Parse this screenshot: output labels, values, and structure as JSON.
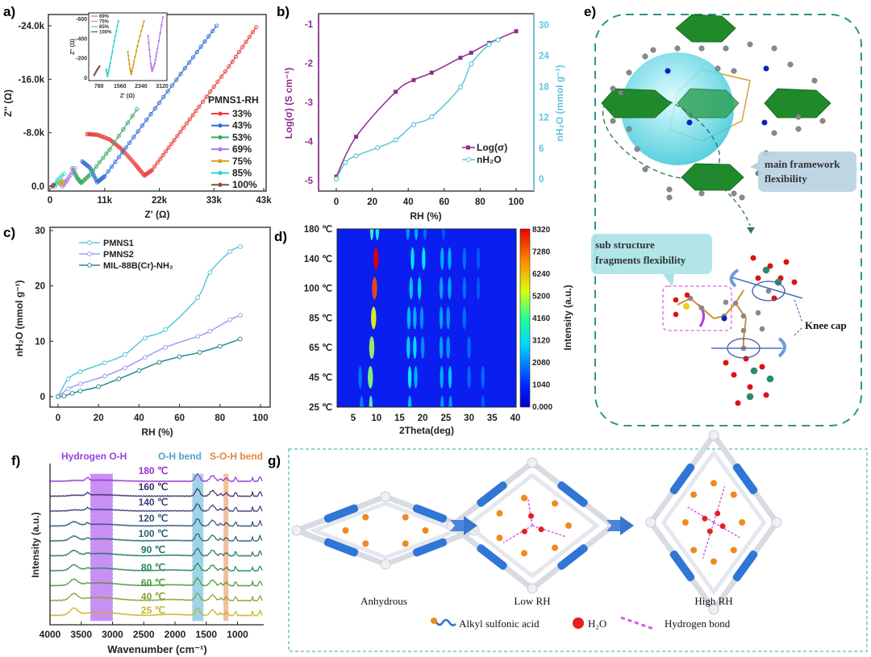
{
  "panel_labels": {
    "a": "a)",
    "b": "b)",
    "c": "c)",
    "d": "d)",
    "e": "e)",
    "f": "f)",
    "g": "g)"
  },
  "colors": {
    "c33": "#e8413f",
    "c43": "#2f6fd6",
    "c53": "#3aab62",
    "c69": "#b07ae6",
    "c75": "#d1a020",
    "c85": "#2ed0cc",
    "c100": "#8a4a3c",
    "purple": "#8e2d8e",
    "cyan": "#5cc6db",
    "pmns1": "#5cc6db",
    "pmns2": "#9a9ef0",
    "mil": "#2a8a8e"
  },
  "chart_data": [
    {
      "id": "a",
      "type": "line",
      "xlabel": "Z' (Ω)",
      "ylabel": "Z'' (Ω)",
      "xlim": [
        0,
        43000
      ],
      "ylim": [
        0,
        -24000
      ],
      "xticks": [
        "0",
        "11k",
        "22k",
        "33k",
        "43k"
      ],
      "xtick_values": [
        0,
        11000,
        22000,
        33000,
        43000
      ],
      "yticks": [
        "0.0",
        "-8.0k",
        "-16.0k",
        "-24.0k"
      ],
      "ytick_values": [
        0,
        -8000,
        -16000,
        -24000
      ],
      "legend_title": "PMNS1-RH",
      "legend_placement": "right",
      "series": [
        {
          "name": "33%",
          "color_key": "c33",
          "points": [
            [
              7500,
              -7800
            ],
            [
              9500,
              -7700
            ],
            [
              12000,
              -7000
            ],
            [
              14500,
              -5500
            ],
            [
              17000,
              -3400
            ],
            [
              19000,
              -1600
            ],
            [
              20500,
              -2400
            ],
            [
              25000,
              -6900
            ],
            [
              30000,
              -11900
            ],
            [
              36000,
              -17900
            ],
            [
              41500,
              -23800
            ]
          ]
        },
        {
          "name": "43%",
          "color_key": "c43",
          "points": [
            [
              6500,
              -3700
            ],
            [
              8000,
              -2800
            ],
            [
              9500,
              -600
            ],
            [
              11000,
              -1500
            ],
            [
              16000,
              -6500
            ],
            [
              22000,
              -12500
            ],
            [
              28000,
              -18500
            ],
            [
              33500,
              -24000
            ]
          ]
        },
        {
          "name": "53%",
          "color_key": "c53",
          "points": [
            [
              4500,
              -2700
            ],
            [
              5500,
              -1200
            ],
            [
              6300,
              -500
            ],
            [
              8000,
              -1700
            ],
            [
              12000,
              -5500
            ],
            [
              17500,
              -11500
            ]
          ]
        },
        {
          "name": "69%",
          "color_key": "c69",
          "points": [
            [
              2500,
              0
            ],
            [
              3500,
              -1000
            ],
            [
              5000,
              -2700
            ]
          ]
        },
        {
          "name": "75%",
          "color_key": "c75",
          "points": [
            [
              2000,
              -300
            ],
            [
              2500,
              -800
            ]
          ]
        },
        {
          "name": "85%",
          "color_key": "c85",
          "points": [
            [
              1000,
              0
            ],
            [
              1500,
              -900
            ],
            [
              2800,
              -1900
            ]
          ]
        },
        {
          "name": "100%",
          "color_key": "c100",
          "points": [
            [
              500,
              0
            ],
            [
              700,
              -200
            ]
          ]
        }
      ],
      "inset": {
        "xlabel": "Z' (Ω)",
        "ylabel": "Z'' (Ω)",
        "xlim": [
          400,
          3300
        ],
        "ylim": [
          0,
          -640
        ],
        "xticks": [
          "780",
          "1560",
          "2340",
          "3120"
        ],
        "xtick_values": [
          780,
          1560,
          2340,
          3120
        ],
        "yticks": [
          "0",
          "-200",
          "-400",
          "-600"
        ],
        "ytick_values": [
          0,
          -200,
          -400,
          -600
        ],
        "series": [
          {
            "name": "69%",
            "color_key": "c69",
            "points": [
              [
                2600,
                -430
              ],
              [
                2700,
                -150
              ],
              [
                2750,
                -70
              ],
              [
                2850,
                -150
              ],
              [
                2950,
                -300
              ],
              [
                3150,
                -620
              ]
            ]
          },
          {
            "name": "75%",
            "color_key": "c75",
            "points": [
              [
                1850,
                -270
              ],
              [
                1930,
                -100
              ],
              [
                1980,
                -40
              ],
              [
                2080,
                -170
              ],
              [
                2250,
                -380
              ],
              [
                2450,
                -580
              ]
            ]
          },
          {
            "name": "85%",
            "color_key": "c85",
            "points": [
              [
                1050,
                -90
              ],
              [
                1100,
                -20
              ],
              [
                1200,
                -150
              ],
              [
                1350,
                -380
              ],
              [
                1500,
                -580
              ]
            ]
          },
          {
            "name": "100%",
            "color_key": "c100",
            "points": [
              [
                600,
                -30
              ],
              [
                700,
                -80
              ],
              [
                800,
                -120
              ]
            ]
          }
        ]
      }
    },
    {
      "id": "b",
      "type": "line",
      "xlabel": "RH (%)",
      "ylabel_left": "Log(σ) (S cm⁻¹)",
      "ylabel_right": "nH₂O (mmol g⁻¹)",
      "xlim": [
        -10,
        110
      ],
      "ylim_left": [
        -5.3,
        -0.7
      ],
      "ylim_right": [
        -3,
        32
      ],
      "xticks": [
        "0",
        "20",
        "40",
        "60",
        "80",
        "100"
      ],
      "xtick_values": [
        0,
        20,
        40,
        60,
        80,
        100
      ],
      "yticks_left": [
        "-1",
        "-2",
        "-3",
        "-4",
        "-5"
      ],
      "ytick_values_left": [
        -1,
        -2,
        -3,
        -4,
        -5
      ],
      "yticks_right": [
        "30",
        "24",
        "18",
        "12",
        "6",
        "0"
      ],
      "ytick_values_right": [
        30,
        24,
        18,
        12,
        6,
        0
      ],
      "legend_placement": "bottom-right",
      "series": [
        {
          "name": "Log(σ)",
          "axis": "left",
          "color_key": "purple",
          "x": [
            0,
            11,
            33,
            43,
            53,
            69,
            75,
            85,
            100
          ],
          "y": [
            -4.9,
            -3.88,
            -2.73,
            -2.43,
            -2.24,
            -1.86,
            -1.73,
            -1.48,
            -1.18
          ]
        },
        {
          "name": "nH₂O",
          "axis": "right",
          "color_key": "cyan",
          "x": [
            0,
            5,
            11,
            23,
            33,
            43,
            53,
            69,
            75,
            85,
            90
          ],
          "y": [
            0,
            3.2,
            4.5,
            6.1,
            7.6,
            10.6,
            12.1,
            17.9,
            22.4,
            26.2,
            27.1
          ]
        }
      ]
    },
    {
      "id": "c",
      "type": "line",
      "xlabel": "RH (%)",
      "ylabel": "nH₂O (mmol g⁻¹)",
      "xlim": [
        -4,
        104
      ],
      "ylim": [
        -2,
        30
      ],
      "xticks": [
        "0",
        "20",
        "40",
        "60",
        "80",
        "100"
      ],
      "xtick_values": [
        0,
        20,
        40,
        60,
        80,
        100
      ],
      "yticks": [
        "0",
        "10",
        "20",
        "30"
      ],
      "ytick_values": [
        0,
        10,
        20,
        30
      ],
      "legend_placement": "top-left",
      "series": [
        {
          "name": "PMNS1",
          "color_key": "pmns1",
          "x": [
            0,
            5,
            11,
            23,
            33,
            43,
            53,
            69,
            75,
            85,
            90
          ],
          "y": [
            0,
            3.2,
            4.5,
            6.1,
            7.6,
            10.6,
            12.1,
            17.9,
            22.4,
            26.2,
            27.1
          ]
        },
        {
          "name": "PMNS2",
          "color_key": "pmns2",
          "x": [
            0,
            5,
            11,
            23,
            33,
            43,
            53,
            69,
            75,
            85,
            90
          ],
          "y": [
            0,
            1.4,
            2.3,
            3.7,
            5.2,
            7.1,
            8.9,
            10.9,
            11.8,
            13.9,
            14.7
          ]
        },
        {
          "name": "MIL-88B(Cr)-NH₂",
          "color_key": "mil",
          "x": [
            0,
            3,
            7,
            11,
            20,
            30,
            40,
            50,
            60,
            70,
            80,
            90
          ],
          "y": [
            0,
            0.1,
            0.6,
            1.0,
            1.8,
            3.2,
            4.7,
            6.2,
            7.2,
            8.0,
            9.1,
            10.4
          ]
        }
      ]
    },
    {
      "id": "d",
      "type": "heatmap",
      "xlabel": "2Theta(deg)",
      "colorbar_label": "Intensity (a.u.)",
      "xlim": [
        4,
        40
      ],
      "xticks": [
        "5",
        "10",
        "15",
        "20",
        "25",
        "30",
        "35",
        "40"
      ],
      "xtick_values": [
        5,
        10,
        15,
        20,
        25,
        30,
        35,
        40
      ],
      "rows": [
        "180 ℃",
        "140 ℃",
        "100 ℃",
        "85 ℃",
        "65 ℃",
        "45 ℃",
        "25 ℃"
      ],
      "colorbar_ticks": [
        "8320",
        "7280",
        "6240",
        "5200",
        "4160",
        "3120",
        "2080",
        "1040",
        "0.000"
      ],
      "zlim": [
        0,
        8320
      ],
      "peaks": [
        {
          "row": 0,
          "x": [
            9.0,
            10.2,
            16.8,
            18.6,
            20.5,
            24.5
          ],
          "z": [
            2600,
            2200,
            1300,
            1500,
            900,
            700
          ]
        },
        {
          "row": 1,
          "x": [
            9.9,
            17.8,
            20.2,
            24.2,
            25.8,
            29,
            32
          ],
          "z": [
            6400,
            2000,
            2000,
            1500,
            1500,
            900,
            700
          ]
        },
        {
          "row": 2,
          "x": [
            9.6,
            17.5,
            19.3,
            24.0,
            25.8,
            29,
            32
          ],
          "z": [
            5600,
            1700,
            1800,
            1400,
            1400,
            900,
            700
          ]
        },
        {
          "row": 3,
          "x": [
            9.4,
            17.0,
            18.3,
            19.8,
            24.0,
            25.5,
            29
          ],
          "z": [
            4000,
            1600,
            1500,
            1200,
            1400,
            1300,
            900
          ]
        },
        {
          "row": 4,
          "x": [
            9.0,
            16.9,
            18.3,
            20.0,
            24.0,
            25.5,
            30
          ],
          "z": [
            3400,
            1800,
            1900,
            1200,
            1400,
            1300,
            900
          ]
        },
        {
          "row": 5,
          "x": [
            6.5,
            8.7,
            17.2,
            18.5,
            24.1,
            25.9,
            30,
            33
          ],
          "z": [
            1000,
            3200,
            2100,
            1500,
            1500,
            1700,
            900,
            900
          ]
        },
        {
          "row": 6,
          "x": [
            6.8,
            8.8,
            17.2,
            24.2,
            26.0,
            33
          ],
          "z": [
            1100,
            2900,
            1600,
            1300,
            1300,
            800
          ]
        }
      ]
    },
    {
      "id": "f",
      "type": "line",
      "xlabel": "Wavenumber (cm⁻¹)",
      "ylabel": "Intensity (a.u.)",
      "xlim": [
        4000,
        600
      ],
      "xticks": [
        "4000",
        "3500",
        "3000",
        "2500",
        "2000",
        "1500",
        "1000"
      ],
      "xtick_values": [
        4000,
        3500,
        3000,
        2500,
        2000,
        1500,
        1000
      ],
      "band_labels": {
        "hydrogen": "Hydrogen O-H",
        "oh": "O-H bend",
        "soh": "S-O-H bend"
      },
      "bands": [
        {
          "key": "hydrogen",
          "range": [
            3350,
            3000
          ],
          "color": "#b86cf0"
        },
        {
          "key": "oh",
          "range": [
            1720,
            1550
          ],
          "color": "#7ec3e0"
        },
        {
          "key": "soh",
          "range": [
            1220,
            1150
          ],
          "color": "#eeaa77"
        }
      ],
      "series": [
        {
          "name": "180 ℃",
          "color": "#9a2ed0"
        },
        {
          "name": "160 ℃",
          "color": "#3c2f66"
        },
        {
          "name": "140 ℃",
          "color": "#3a3f78"
        },
        {
          "name": "120 ℃",
          "color": "#2f5078"
        },
        {
          "name": "100 ℃",
          "color": "#276470"
        },
        {
          "name": "90 ℃",
          "color": "#227368"
        },
        {
          "name": "80 ℃",
          "color": "#2a8552"
        },
        {
          "name": "60 ℃",
          "color": "#49973a"
        },
        {
          "name": "40 ℃",
          "color": "#7fa42a"
        },
        {
          "name": "25 ℃",
          "color": "#c5b31e"
        }
      ]
    }
  ],
  "panel_e": {
    "main_callout": [
      "main framework",
      "flexibility"
    ],
    "sub_callout": [
      "sub structure",
      "fragments flexibility"
    ],
    "knee_cap": "Knee cap"
  },
  "panel_g": {
    "states": [
      "Anhydrous",
      "Low RH",
      "High RH"
    ],
    "legend": {
      "alkyl": "Alkyl sulfonic acid",
      "water": "H₂O",
      "hbond": "Hydrogen bond"
    }
  }
}
